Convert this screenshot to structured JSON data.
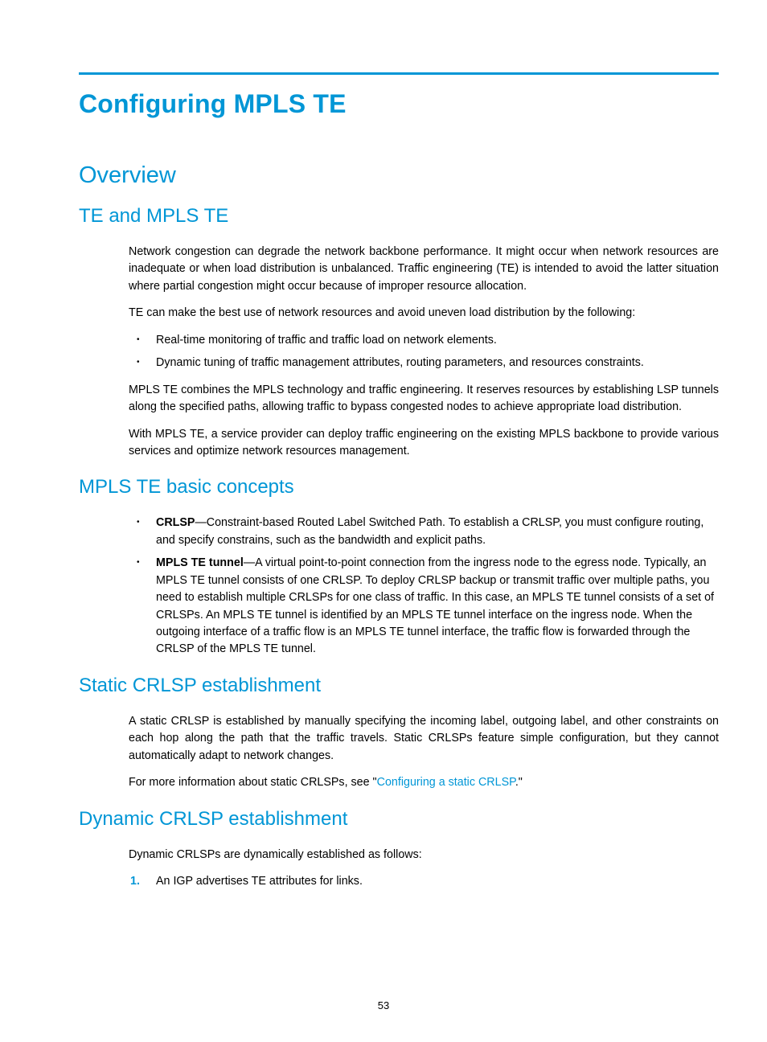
{
  "colors": {
    "accent": "#0096d6",
    "text": "#000000",
    "rule": "#0096d6"
  },
  "title": "Configuring MPLS TE",
  "h2_overview": "Overview",
  "h3_te": "TE and MPLS TE",
  "p1": "Network congestion can degrade the network backbone performance. It might occur when network resources are inadequate or when load distribution is unbalanced. Traffic engineering (TE) is intended to avoid the latter situation where partial congestion might occur because of improper resource allocation.",
  "p2": "TE can make the best use of network resources and avoid uneven load distribution by the following:",
  "te_list": [
    "Real-time monitoring of traffic and traffic load on network elements.",
    "Dynamic tuning of traffic management attributes, routing parameters, and resources constraints."
  ],
  "p3": "MPLS TE combines the MPLS technology and traffic engineering. It reserves resources by establishing LSP tunnels along the specified paths, allowing traffic to bypass congested nodes to achieve appropriate load distribution.",
  "p4": "With MPLS TE, a service provider can deploy traffic engineering on the existing MPLS backbone to provide various services and optimize network resources management.",
  "h3_concepts": "MPLS TE basic concepts",
  "concepts": {
    "crlsp_label": "CRLSP",
    "crlsp_text": "—Constraint-based Routed Label Switched Path. To establish a CRLSP, you must configure routing, and specify constrains, such as the bandwidth and explicit paths.",
    "tunnel_label": "MPLS TE tunnel",
    "tunnel_text": "—A virtual point-to-point connection from the ingress node to the egress node. Typically, an MPLS TE tunnel consists of one CRLSP. To deploy CRLSP backup or transmit traffic over multiple paths, you need to establish multiple CRLSPs for one class of traffic. In this case, an MPLS TE tunnel consists of a set of CRLSPs. An MPLS TE tunnel is identified by an MPLS TE tunnel interface on the ingress node. When the outgoing interface of a traffic flow is an MPLS TE tunnel interface, the traffic flow is forwarded through the CRLSP of the MPLS TE tunnel."
  },
  "h3_static": "Static CRLSP establishment",
  "static_p1": "A static CRLSP is established by manually specifying the incoming label, outgoing label, and other constraints on each hop along the path that the traffic travels. Static CRLSPs feature simple configuration, but they cannot automatically adapt to network changes.",
  "static_p2a": "For more information about static CRLSPs, see \"",
  "static_link": "Configuring a static CRLSP",
  "static_p2b": ".\"",
  "h3_dynamic": "Dynamic CRLSP establishment",
  "dyn_p1": "Dynamic CRLSPs are dynamically established as follows:",
  "dyn_step1_marker": "1.",
  "dyn_step1": "An IGP advertises TE attributes for links.",
  "page_number": "53"
}
